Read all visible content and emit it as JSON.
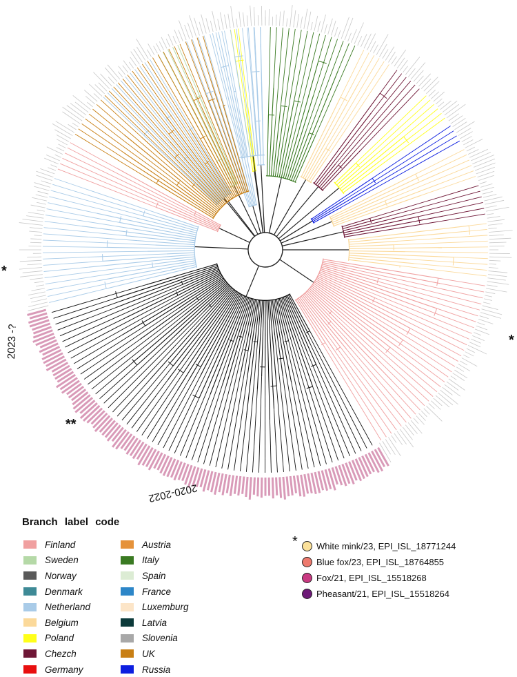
{
  "legend": {
    "title": "Branch  label code",
    "col1": [
      {
        "label": "Finland",
        "color": "#f0a0a0"
      },
      {
        "label": "Sweden",
        "color": "#b5d9a7"
      },
      {
        "label": "Norway",
        "color": "#5a5a5a"
      },
      {
        "label": "Denmark",
        "color": "#3e8a96"
      },
      {
        "label": "Netherland",
        "color": "#a9cbe8"
      },
      {
        "label": "Belgium",
        "color": "#fbd99a"
      },
      {
        "label": "Poland",
        "color": "#ffff1a"
      },
      {
        "label": "Chezch",
        "color": "#6e1636"
      },
      {
        "label": "Germany",
        "color": "#e80f0f"
      }
    ],
    "col2": [
      {
        "label": "Austria",
        "color": "#e5923a"
      },
      {
        "label": "Italy",
        "color": "#3a7a22"
      },
      {
        "label": "Spain",
        "color": "#dcecd4"
      },
      {
        "label": "France",
        "color": "#2d86c8"
      },
      {
        "label": "Luxemburg",
        "color": "#fce5c8"
      },
      {
        "label": "Latvia",
        "color": "#0c3a3a"
      },
      {
        "label": "Slovenia",
        "color": "#a8a8a8"
      },
      {
        "label": "UK",
        "color": "#c87f14"
      },
      {
        "label": "Russia",
        "color": "#0d1fe0"
      }
    ]
  },
  "samples": [
    {
      "label": "White mink/23, EPI_ISL_18771244",
      "color": "#fbe19a"
    },
    {
      "label": "Blue fox/23, EPI_ISL_18764855",
      "color": "#ee7a6e"
    },
    {
      "label": "Fox/21, EPI_ISL_15518268",
      "color": "#c93a82"
    },
    {
      "label": "Pheasant/21, EPI_ISL_15518264",
      "color": "#6e1a78"
    }
  ],
  "markers": {
    "star": "*",
    "double_star": "**"
  },
  "periods": {
    "recent": "2023 -?",
    "older": "2020-2022"
  },
  "colors": {
    "black_clade": "#111111",
    "ring_gray": "#c8c8c8",
    "ring_pink": "#d99ab8",
    "root": "#222222"
  }
}
